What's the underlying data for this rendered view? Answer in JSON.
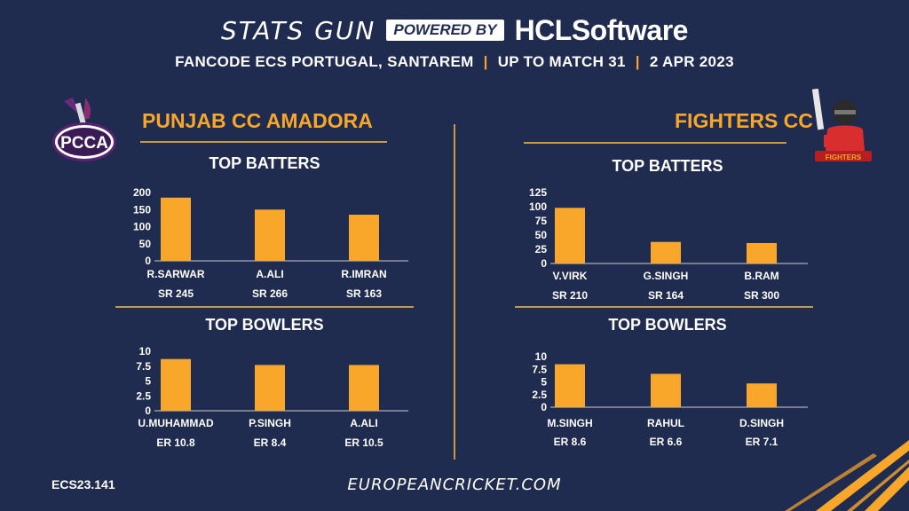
{
  "header": {
    "brand": "STATS GUN",
    "powered_by": "POWERED BY",
    "sponsor": "HCLSoftware",
    "subtitle_parts": [
      "FANCODE ECS PORTUGAL, SANTAREM",
      "UP TO MATCH  31",
      "2 APR 2023"
    ],
    "separator": "|"
  },
  "teams": {
    "left": {
      "name": "PUNJAB CC AMADORA",
      "logo_text": "PCCA"
    },
    "right": {
      "name": "FIGHTERS CC",
      "logo_text": "FIGHTERS"
    }
  },
  "colors": {
    "background": "#1f2b4f",
    "accent": "#f9a72b",
    "bar": "#f9a72b",
    "line": "#c79a3e"
  },
  "chart_data": [
    {
      "id": "left-batters",
      "type": "bar",
      "title": "TOP BATTERS",
      "categories": [
        "R.SARWAR",
        "A.ALI",
        "R.IMRAN"
      ],
      "values": [
        185,
        150,
        135
      ],
      "sublabels": [
        "SR 245",
        "SR 266",
        "SR 163"
      ],
      "yticks": [
        "200",
        "150",
        "100",
        "50",
        "0"
      ],
      "ylim": [
        0,
        200
      ]
    },
    {
      "id": "left-bowlers",
      "type": "bar",
      "title": "TOP BOWLERS",
      "categories": [
        "U.MUHAMMAD",
        "P.SINGH",
        "A.ALI"
      ],
      "values": [
        8.7,
        7.7,
        7.7
      ],
      "sublabels": [
        "ER 10.8",
        "ER 8.4",
        "ER 10.5"
      ],
      "yticks": [
        "10",
        "7.5",
        "5",
        "2.5",
        "0"
      ],
      "ylim": [
        0,
        10
      ]
    },
    {
      "id": "right-batters",
      "type": "bar",
      "title": "TOP BATTERS",
      "categories": [
        "V.VIRK",
        "G.SINGH",
        "B.RAM"
      ],
      "values": [
        98,
        38,
        36
      ],
      "sublabels": [
        "SR 210",
        "SR 164",
        "SR 300"
      ],
      "yticks": [
        "125",
        "100",
        "75",
        "50",
        "25",
        "0"
      ],
      "ylim": [
        0,
        125
      ]
    },
    {
      "id": "right-bowlers",
      "type": "bar",
      "title": "TOP BOWLERS",
      "categories": [
        "M.SINGH",
        "RAHUL",
        "D.SINGH"
      ],
      "values": [
        8.5,
        6.6,
        4.7
      ],
      "sublabels": [
        "ER 8.6",
        "ER 6.6",
        "ER 7.1"
      ],
      "yticks": [
        "10",
        "7.5",
        "5",
        "2.5",
        "0"
      ],
      "ylim": [
        0,
        10
      ]
    }
  ],
  "footer": {
    "code": "ECS23.141",
    "site": "EUROPEANCRICKET.COM"
  }
}
